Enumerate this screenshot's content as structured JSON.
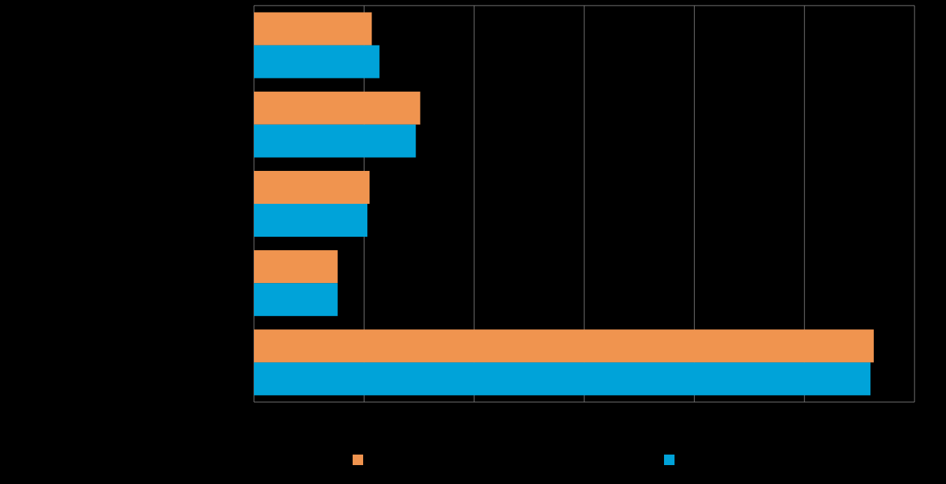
{
  "chart_data": {
    "type": "hbar",
    "categories": [
      null,
      null,
      null,
      null,
      null
    ],
    "series": [
      {
        "color": "#f0944f",
        "values": [
          1.07,
          1.51,
          1.05,
          0.76,
          5.63
        ]
      },
      {
        "color": "#00a3d9",
        "values": [
          1.14,
          1.47,
          1.03,
          0.76,
          5.6
        ]
      }
    ],
    "xlim": [
      0,
      6
    ],
    "xticks": [
      0,
      1,
      2,
      3,
      4,
      5,
      6
    ],
    "grid": true
  }
}
